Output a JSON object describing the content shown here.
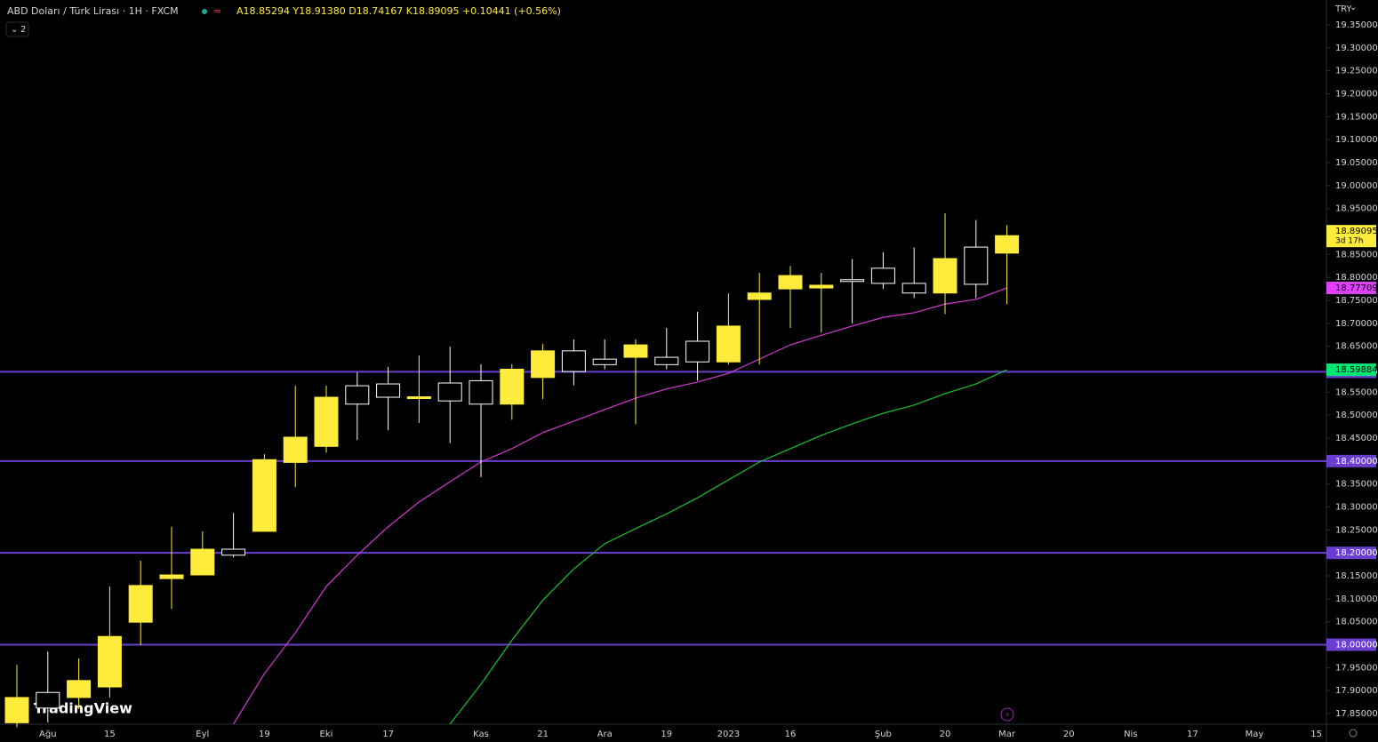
{
  "chart_data": {
    "type": "candlestick",
    "header": {
      "symbol": "ABD Doları / Türk Lirası · 1H · FXCM",
      "ohlc": [
        {
          "key": "A",
          "value": "18.85294"
        },
        {
          "key": "Y",
          "value": "18.91380"
        },
        {
          "key": "D",
          "value": "18.74167"
        },
        {
          "key": "K",
          "value": "18.89095"
        }
      ],
      "change": "+0.10441 (+0.56%)",
      "badge": "2",
      "currency": "TRY",
      "logo": "TradingView",
      "countdown": "3d 17h"
    },
    "categories": [
      null,
      "Ağu",
      null,
      "15",
      null,
      null,
      "Eyl",
      null,
      "19",
      null,
      "Eki",
      null,
      "17",
      null,
      null,
      "Kas",
      null,
      "21",
      null,
      "Ara",
      null,
      "19",
      null,
      "2023",
      null,
      "16",
      null,
      null,
      "Şub",
      null,
      "20",
      null,
      "Mar",
      null,
      "20",
      null,
      "Nis",
      null,
      "17",
      null,
      "May",
      null,
      "15"
    ],
    "open": [
      17.83,
      17.896,
      17.885,
      17.908,
      18.049,
      18.144,
      18.152,
      18.208,
      18.247,
      18.397,
      18.432,
      18.564,
      18.568,
      18.538,
      18.57,
      18.575,
      18.524,
      18.582,
      18.64,
      18.622,
      18.626,
      18.626,
      18.661,
      18.616,
      18.752,
      18.775,
      18.777,
      18.795,
      18.82,
      18.787,
      18.766,
      18.866,
      18.85294,
      null,
      null,
      null,
      null,
      null,
      null,
      null,
      null,
      null,
      null
    ],
    "high": [
      17.956,
      17.985,
      17.97,
      18.127,
      18.183,
      18.257,
      18.247,
      18.287,
      18.415,
      18.564,
      18.564,
      18.593,
      18.605,
      18.63,
      18.649,
      18.611,
      18.611,
      18.655,
      18.665,
      18.665,
      18.665,
      18.69,
      18.725,
      18.765,
      18.81,
      18.825,
      18.81,
      18.84,
      18.855,
      18.865,
      18.94,
      18.925,
      18.9138,
      null,
      null,
      null,
      null,
      null,
      null,
      null,
      null,
      null,
      null
    ],
    "low": [
      17.82,
      17.831,
      17.86,
      17.885,
      17.999,
      18.078,
      18.152,
      18.19,
      18.247,
      18.343,
      18.418,
      18.446,
      18.467,
      18.483,
      18.439,
      18.365,
      18.49,
      18.535,
      18.565,
      18.6,
      18.48,
      18.6,
      18.575,
      18.61,
      18.61,
      18.69,
      18.68,
      18.7,
      18.775,
      18.755,
      18.72,
      18.755,
      18.74167,
      null,
      null,
      null,
      null,
      null,
      null,
      null,
      null,
      null,
      null
    ],
    "close": [
      17.885,
      17.862,
      17.922,
      18.018,
      18.129,
      18.152,
      18.208,
      18.195,
      18.403,
      18.452,
      18.539,
      18.524,
      18.539,
      18.54,
      18.531,
      18.524,
      18.6,
      18.64,
      18.595,
      18.61,
      18.653,
      18.61,
      18.616,
      18.694,
      18.766,
      18.804,
      18.783,
      18.794,
      18.787,
      18.766,
      18.841,
      18.785,
      18.89095,
      null,
      null,
      null,
      null,
      null,
      null,
      null,
      null,
      null,
      null
    ],
    "up_color": "#ffeb3b",
    "down_color": "#000000",
    "down_border": "#ffffff",
    "lines": [
      {
        "color": "#d63ad6",
        "label_color": "#e040fb",
        "values": [
          null,
          null,
          null,
          null,
          null,
          null,
          null,
          17.827,
          17.937,
          18.026,
          18.127,
          18.195,
          18.257,
          18.311,
          18.355,
          18.398,
          18.427,
          18.462,
          18.487,
          18.512,
          18.537,
          18.557,
          18.572,
          18.591,
          18.622,
          18.653,
          18.674,
          18.694,
          18.713,
          18.723,
          18.742,
          18.752,
          18.77709,
          null,
          null,
          null,
          null,
          null,
          null,
          null,
          null,
          null,
          null
        ]
      },
      {
        "color": "#16c42b",
        "label_color": "#00e676",
        "values": [
          null,
          null,
          null,
          null,
          null,
          null,
          null,
          null,
          null,
          null,
          null,
          null,
          null,
          null,
          17.827,
          17.914,
          18.01,
          18.097,
          18.165,
          18.22,
          18.253,
          18.285,
          18.32,
          18.359,
          18.398,
          18.427,
          18.456,
          18.481,
          18.504,
          18.522,
          18.547,
          18.568,
          18.59884,
          null,
          null,
          null,
          null,
          null,
          null,
          null,
          null,
          null,
          null
        ]
      }
    ],
    "hlines": [
      {
        "value": 18.59439,
        "label": "18.59439"
      },
      {
        "value": 18.4,
        "label": "18.40000"
      },
      {
        "value": 18.2,
        "label": "18.20000"
      },
      {
        "value": 18.0,
        "label": "18.00000"
      }
    ],
    "hline_color": "#6a3fd0",
    "ylim": [
      17.8268,
      19.4042
    ],
    "yticks": [
      {
        "value": 19.35,
        "label": "19.35000"
      },
      {
        "value": 19.3,
        "label": "19.30000"
      },
      {
        "value": 19.25,
        "label": "19.25000"
      },
      {
        "value": 19.2,
        "label": "19.20000"
      },
      {
        "value": 19.15,
        "label": "19.15000"
      },
      {
        "value": 19.1,
        "label": "19.10000"
      },
      {
        "value": 19.05,
        "label": "19.05000"
      },
      {
        "value": 19.0,
        "label": "19.00000"
      },
      {
        "value": 18.95,
        "label": "18.95000"
      },
      {
        "value": 18.85,
        "label": "18.85000"
      },
      {
        "value": 18.8,
        "label": "18.80000"
      },
      {
        "value": 18.75,
        "label": "18.75000"
      },
      {
        "value": 18.7,
        "label": "18.70000"
      },
      {
        "value": 18.65,
        "label": "18.65000"
      },
      {
        "value": 18.55,
        "label": "18.55000"
      },
      {
        "value": 18.5,
        "label": "18.50000"
      },
      {
        "value": 18.45,
        "label": "18.45000"
      },
      {
        "value": 18.35,
        "label": "18.35000"
      },
      {
        "value": 18.3,
        "label": "18.30000"
      },
      {
        "value": 18.25,
        "label": "18.25000"
      },
      {
        "value": 18.15,
        "label": "18.15000"
      },
      {
        "value": 18.1,
        "label": "18.10000"
      },
      {
        "value": 18.05,
        "label": "18.05000"
      },
      {
        "value": 17.95,
        "label": "17.95000"
      },
      {
        "value": 17.9,
        "label": "17.90000"
      },
      {
        "value": 17.85,
        "label": "17.85000"
      }
    ],
    "grid": false
  }
}
